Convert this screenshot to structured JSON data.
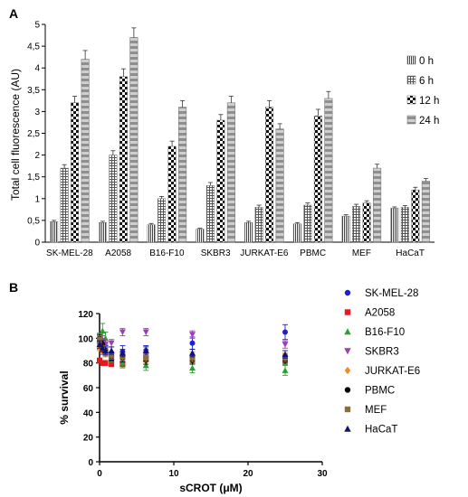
{
  "chart_data": [
    {
      "panel_label": "A",
      "type": "bar",
      "ylabel": "Total cell fluorescence (AU)",
      "xlabel": "",
      "ylim": [
        0,
        5
      ],
      "yticks": [
        "0",
        "0,5",
        "1",
        "1,5",
        "2",
        "2,5",
        "3",
        "3,5",
        "4",
        "4,5",
        "5"
      ],
      "categories": [
        "SK-MEL-28",
        "A2058",
        "B16-F10",
        "SKBR3",
        "JURKAT-E6",
        "PBMC",
        "MEF",
        "HaCaT"
      ],
      "legend_position": "right",
      "series": [
        {
          "name": "0 h",
          "pattern": "vertical-lines",
          "values": [
            0.47,
            0.45,
            0.4,
            0.3,
            0.45,
            0.42,
            0.6,
            0.78
          ],
          "errors": [
            0.03,
            0.03,
            0.03,
            0.02,
            0.03,
            0.03,
            0.03,
            0.03
          ]
        },
        {
          "name": "6 h",
          "pattern": "grid",
          "values": [
            1.7,
            2.0,
            1.0,
            1.3,
            0.8,
            0.85,
            0.82,
            0.8
          ],
          "errors": [
            0.08,
            0.1,
            0.05,
            0.07,
            0.05,
            0.05,
            0.05,
            0.04
          ]
        },
        {
          "name": "12 h",
          "pattern": "checker",
          "values": [
            3.2,
            3.8,
            2.2,
            2.8,
            3.1,
            2.9,
            0.9,
            1.2
          ],
          "errors": [
            0.15,
            0.18,
            0.12,
            0.13,
            0.15,
            0.15,
            0.05,
            0.06
          ]
        },
        {
          "name": "24 h",
          "pattern": "horizontal-bands",
          "values": [
            4.2,
            4.7,
            3.1,
            3.2,
            2.6,
            3.3,
            1.7,
            1.4
          ],
          "errors": [
            0.2,
            0.22,
            0.15,
            0.15,
            0.12,
            0.16,
            0.09,
            0.06
          ]
        }
      ]
    },
    {
      "panel_label": "B",
      "type": "scatter",
      "xlabel": "sCROT (μM)",
      "ylabel": "% survival",
      "xlim": [
        0,
        30
      ],
      "ylim": [
        0,
        120
      ],
      "xticks": [
        "0",
        "10",
        "20",
        "30"
      ],
      "yticks": [
        "0",
        "20",
        "40",
        "60",
        "80",
        "100",
        "120"
      ],
      "legend_position": "right",
      "x": [
        0,
        0.4,
        0.8,
        1.6,
        3.1,
        6.25,
        12.5,
        25
      ],
      "series": [
        {
          "name": "SK-MEL-28",
          "color": "#1f1fd6",
          "marker": "circle",
          "values": [
            100,
            92,
            90,
            82,
            89,
            90,
            96,
            105
          ],
          "errors": [
            4,
            5,
            4,
            4,
            5,
            4,
            5,
            6
          ]
        },
        {
          "name": "A2058",
          "color": "#e31a1c",
          "marker": "square",
          "values": [
            82,
            80,
            80,
            79,
            79,
            83,
            83,
            82
          ],
          "errors": [
            2,
            2,
            2,
            2,
            2,
            2,
            3,
            3
          ]
        },
        {
          "name": "B16-F10",
          "color": "#2ca02c",
          "marker": "triangle-up",
          "values": [
            100,
            106,
            100,
            85,
            80,
            78,
            76,
            74
          ],
          "errors": [
            4,
            6,
            5,
            4,
            4,
            4,
            4,
            4
          ]
        },
        {
          "name": "SKBR3",
          "color": "#9b3fb8",
          "marker": "triangle-down",
          "values": [
            94,
            98,
            95,
            96,
            105,
            105,
            103,
            95
          ],
          "errors": [
            3,
            4,
            3,
            3,
            3,
            3,
            3,
            3
          ]
        },
        {
          "name": "JURKAT-E6",
          "color": "#f08a24",
          "marker": "diamond",
          "values": [
            92,
            90,
            88,
            87,
            86,
            88,
            87,
            86
          ],
          "errors": [
            2,
            2,
            2,
            2,
            2,
            2,
            2,
            2
          ]
        },
        {
          "name": "PBMC",
          "color": "#000000",
          "marker": "circle",
          "values": [
            100,
            95,
            90,
            85,
            84,
            82,
            82,
            82
          ],
          "errors": [
            3,
            3,
            3,
            3,
            3,
            3,
            3,
            3
          ]
        },
        {
          "name": "MEF",
          "color": "#8a6d3b",
          "marker": "square",
          "values": [
            99,
            92,
            88,
            86,
            85,
            84,
            84,
            84
          ],
          "errors": [
            3,
            3,
            3,
            3,
            3,
            3,
            3,
            3
          ]
        },
        {
          "name": "HaCaT",
          "color": "#10107a",
          "marker": "triangle-up",
          "values": [
            95,
            92,
            90,
            90,
            88,
            90,
            88,
            87
          ],
          "errors": [
            3,
            3,
            3,
            3,
            3,
            3,
            3,
            3
          ]
        }
      ]
    }
  ]
}
